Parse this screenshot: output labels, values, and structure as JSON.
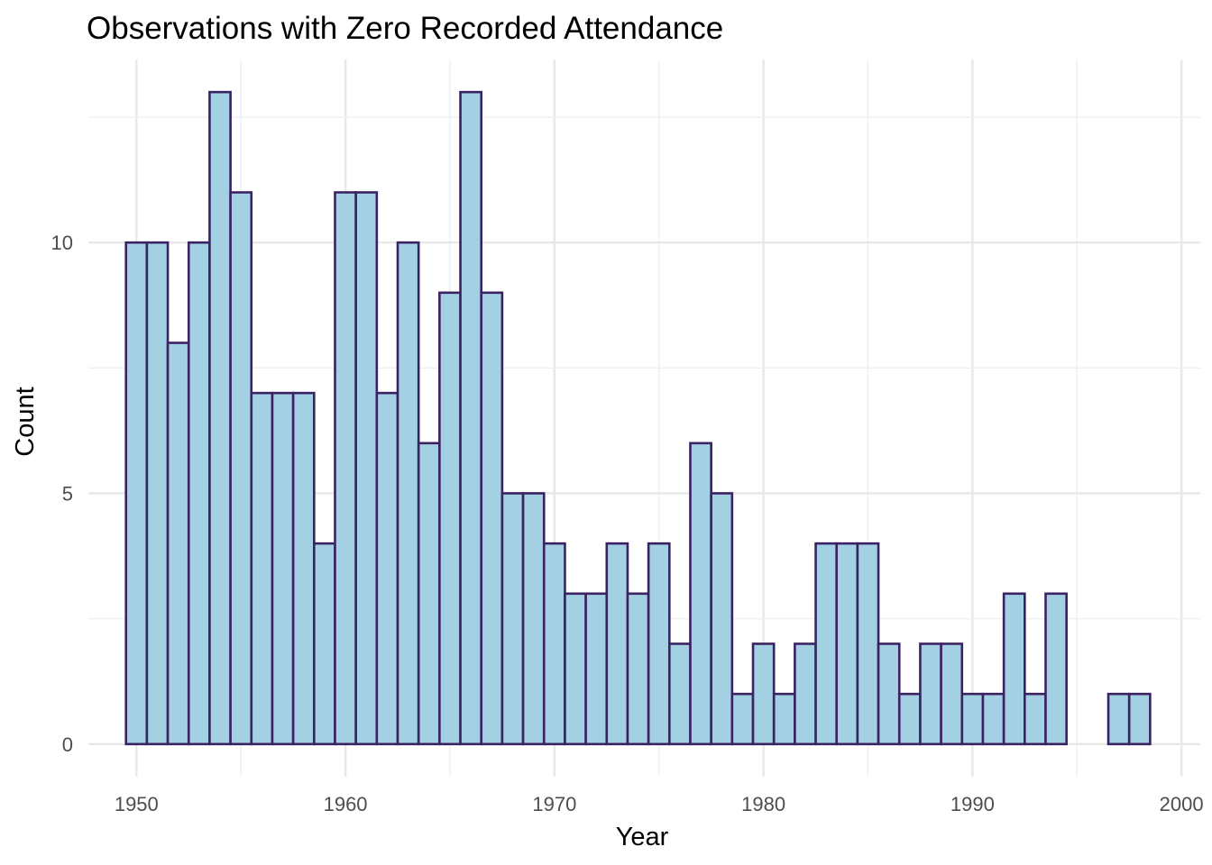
{
  "chart_data": {
    "type": "bar",
    "title": "Observations with Zero Recorded Attendance",
    "xlabel": "Year",
    "ylabel": "Count",
    "x": [
      1950,
      1951,
      1952,
      1953,
      1954,
      1955,
      1956,
      1957,
      1958,
      1959,
      1960,
      1961,
      1962,
      1963,
      1964,
      1965,
      1966,
      1967,
      1968,
      1969,
      1970,
      1971,
      1972,
      1973,
      1974,
      1975,
      1976,
      1977,
      1978,
      1979,
      1980,
      1981,
      1982,
      1983,
      1984,
      1985,
      1986,
      1987,
      1988,
      1989,
      1990,
      1991,
      1992,
      1993,
      1994,
      1995,
      1996,
      1997,
      1998
    ],
    "values": [
      10,
      10,
      8,
      10,
      13,
      11,
      7,
      7,
      7,
      4,
      11,
      11,
      7,
      10,
      6,
      9,
      13,
      9,
      5,
      5,
      4,
      3,
      3,
      4,
      3,
      4,
      2,
      6,
      5,
      1,
      2,
      1,
      2,
      4,
      4,
      4,
      2,
      1,
      2,
      2,
      1,
      1,
      3,
      1,
      3,
      0,
      0,
      1,
      1
    ],
    "xlim": [
      1947.7,
      2000.9
    ],
    "ylim": [
      -0.65,
      13.65
    ],
    "xticks": [
      1950,
      1960,
      1970,
      1980,
      1990,
      2000
    ],
    "yticks": [
      0,
      5,
      10
    ],
    "grid": true,
    "colors": {
      "fill": "#a3d0e2",
      "outline": "#3b2263"
    }
  }
}
